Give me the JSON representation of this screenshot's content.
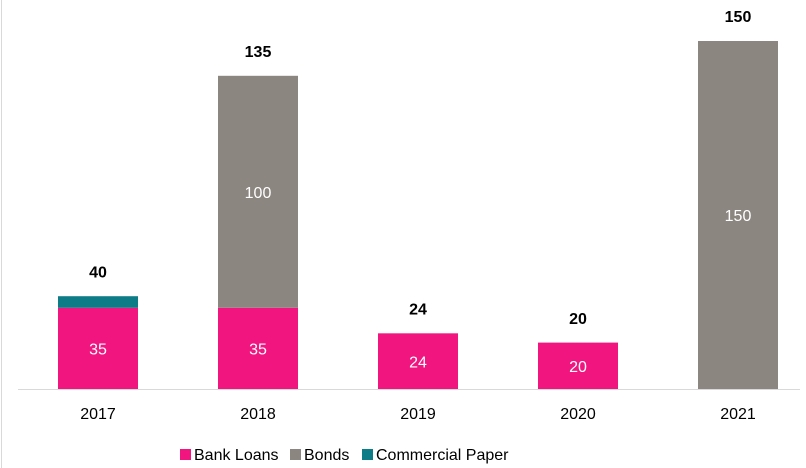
{
  "chart_data": {
    "type": "stacked_bar",
    "categories": [
      "2017",
      "2018",
      "2019",
      "2020",
      "2021"
    ],
    "series": [
      {
        "name": "Bank Loans",
        "color": "#f0157f",
        "values": [
          35,
          35,
          24,
          20,
          null
        ]
      },
      {
        "name": "Bonds",
        "color": "#8c8680",
        "values": [
          null,
          100,
          null,
          null,
          150
        ]
      },
      {
        "name": "Commercial Paper",
        "color": "#0e7c86",
        "values": [
          5,
          null,
          null,
          null,
          null
        ]
      }
    ],
    "totals": [
      40,
      135,
      24,
      20,
      150
    ],
    "ylim": [
      0,
      150
    ],
    "legend": "bottom"
  }
}
